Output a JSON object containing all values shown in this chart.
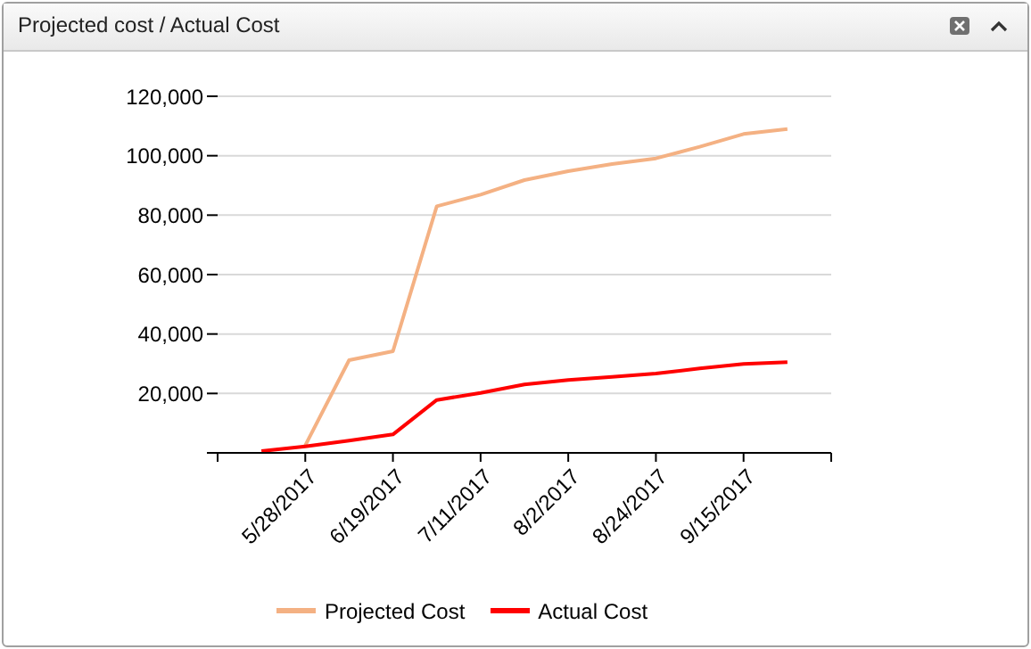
{
  "chart_data": {
    "type": "line",
    "title": "Projected cost / Actual Cost",
    "x": [
      "2017-05-17",
      "2017-05-28",
      "2017-06-08",
      "2017-06-19",
      "2017-06-30",
      "2017-07-11",
      "2017-07-22",
      "2017-08-02",
      "2017-08-13",
      "2017-08-24",
      "2017-09-04",
      "2017-09-15",
      "2017-09-26"
    ],
    "series": [
      {
        "name": "Projected Cost",
        "color": "#f4b183",
        "values": [
          null,
          2500,
          31200,
          34200,
          83000,
          86900,
          91800,
          94800,
          97200,
          99100,
          103000,
          107300,
          109000
        ]
      },
      {
        "name": "Actual Cost",
        "color": "#ff0000",
        "values": [
          600,
          2200,
          4100,
          6200,
          17800,
          20200,
          23000,
          24500,
          25600,
          26700,
          28400,
          29900,
          30500
        ]
      }
    ],
    "xlim": [
      "2017-05-06",
      "2017-10-07"
    ],
    "xticks": [
      {
        "value": "2017-05-06",
        "label": null
      },
      {
        "value": "2017-05-28",
        "label": "5/28/2017"
      },
      {
        "value": "2017-06-19",
        "label": "6/19/2017"
      },
      {
        "value": "2017-07-11",
        "label": "7/11/2017"
      },
      {
        "value": "2017-08-02",
        "label": "8/2/2017"
      },
      {
        "value": "2017-08-24",
        "label": "8/24/2017"
      },
      {
        "value": "2017-09-15",
        "label": "9/15/2017"
      },
      {
        "value": "2017-10-07",
        "label": null
      }
    ],
    "ylim": [
      0,
      120000
    ],
    "yticks": [
      {
        "value": 0,
        "label": null
      },
      {
        "value": 20000,
        "label": "20,000"
      },
      {
        "value": 40000,
        "label": "40,000"
      },
      {
        "value": 60000,
        "label": "60,000"
      },
      {
        "value": 80000,
        "label": "80,000"
      },
      {
        "value": 100000,
        "label": "100,000"
      },
      {
        "value": 120000,
        "label": "120,000"
      }
    ],
    "grid": "y",
    "legend": "bottom",
    "marker": "none",
    "line_style": "solid"
  }
}
